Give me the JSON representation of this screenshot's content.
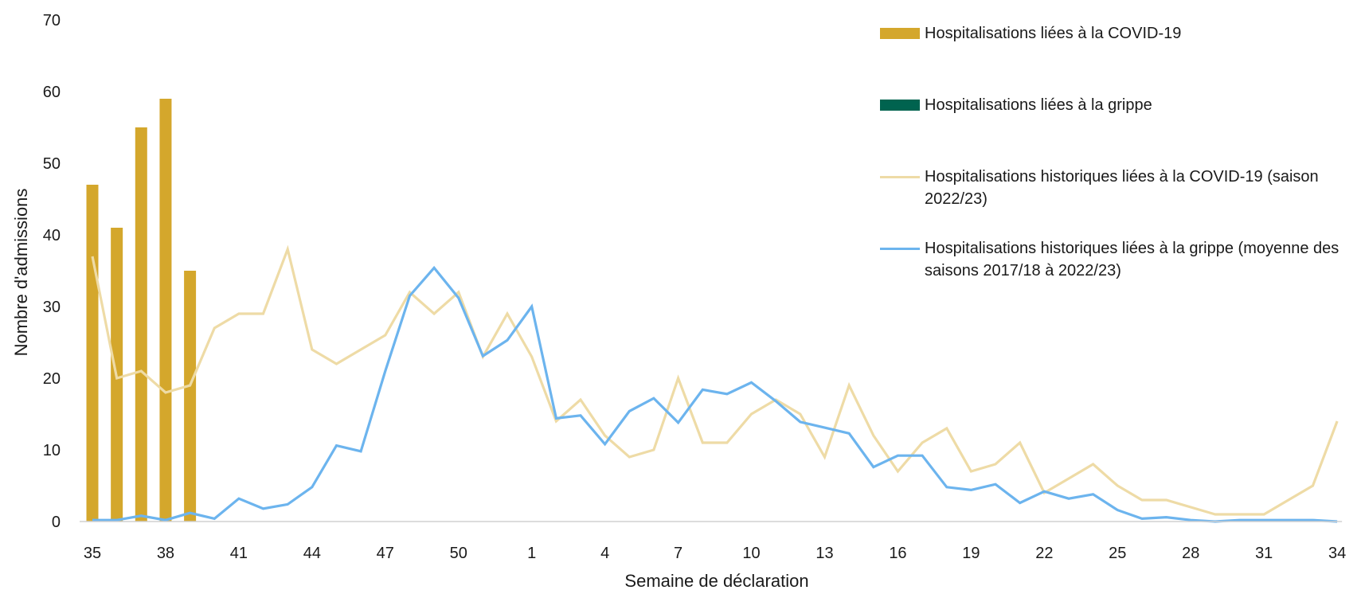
{
  "chart_data": {
    "type": "bar",
    "xlabel": "Semaine de déclaration",
    "ylabel": "Nombre d'admissions",
    "ylim": [
      0,
      70
    ],
    "yticks": [
      0,
      10,
      20,
      30,
      40,
      50,
      60,
      70
    ],
    "grid": false,
    "legend_position": "top-right",
    "weeks": [
      35,
      36,
      37,
      38,
      39,
      40,
      41,
      42,
      43,
      44,
      45,
      46,
      47,
      48,
      49,
      50,
      51,
      52,
      1,
      2,
      3,
      4,
      5,
      6,
      7,
      8,
      9,
      10,
      11,
      12,
      13,
      14,
      15,
      16,
      17,
      18,
      19,
      20,
      21,
      22,
      23,
      24,
      25,
      26,
      27,
      28,
      29,
      30,
      31,
      32,
      33,
      34
    ],
    "xtick_labels": [
      "35",
      "38",
      "41",
      "44",
      "47",
      "50",
      "1",
      "4",
      "7",
      "10",
      "13",
      "16",
      "19",
      "22",
      "25",
      "28",
      "31",
      "34"
    ],
    "series": [
      {
        "name": "Hospitalisations liées à la COVID-19",
        "kind": "bar",
        "color": "#D4A72C",
        "values": [
          47,
          41,
          55,
          59,
          35
        ]
      },
      {
        "name": "Hospitalisations liées à la grippe",
        "kind": "bar",
        "color": "#00634F",
        "values": [
          0,
          0,
          0,
          0,
          0
        ]
      },
      {
        "name": "Hospitalisations historiques liées à la COVID-19 (saison 2022/23)",
        "kind": "line",
        "color": "#EEDBA6",
        "values": [
          37,
          20,
          21,
          18,
          19,
          27,
          29,
          29,
          38,
          24,
          22,
          24,
          26,
          32,
          29,
          32,
          23,
          29,
          23,
          14,
          17,
          12,
          9,
          10,
          20,
          11,
          11,
          15,
          17,
          15,
          9,
          19,
          12,
          7,
          11,
          13,
          7,
          8,
          11,
          4,
          6,
          8,
          5,
          3,
          3,
          2,
          1,
          1,
          1,
          3,
          5,
          14
        ]
      },
      {
        "name": "Hospitalisations historiques liées à la grippe (moyenne des saisons 2017/18 à 2022/23)",
        "kind": "line",
        "color": "#6CB4EE",
        "values": [
          0.2,
          0.2,
          0.8,
          0.2,
          1.2,
          0.4,
          3.2,
          1.8,
          2.4,
          4.8,
          10.6,
          9.8,
          21,
          31.5,
          35.4,
          31.2,
          23.1,
          25.3,
          30,
          14.4,
          14.8,
          10.8,
          15.4,
          17.2,
          13.8,
          18.4,
          17.8,
          19.4,
          16.8,
          13.9,
          13.1,
          12.3,
          7.6,
          9.2,
          9.2,
          4.8,
          4.4,
          5.2,
          2.6,
          4.2,
          3.2,
          3.8,
          1.6,
          0.4,
          0.6,
          0.2,
          0,
          0.2,
          0.2,
          0.2,
          0.2,
          0
        ]
      }
    ]
  }
}
